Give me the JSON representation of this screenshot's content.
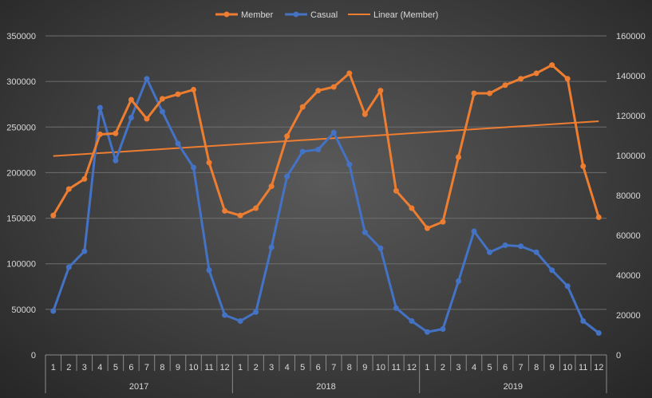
{
  "chart_data": {
    "type": "line",
    "title": "",
    "legend": {
      "position": "top",
      "entries": [
        "Member",
        "Casual",
        "Linear (Member)"
      ]
    },
    "x_months": [
      "1",
      "2",
      "3",
      "4",
      "5",
      "6",
      "7",
      "8",
      "9",
      "10",
      "11",
      "12",
      "1",
      "2",
      "3",
      "4",
      "5",
      "6",
      "7",
      "8",
      "9",
      "10",
      "11",
      "12",
      "1",
      "2",
      "3",
      "4",
      "5",
      "6",
      "7",
      "8",
      "9",
      "10",
      "11",
      "12"
    ],
    "x_years": [
      "2017",
      "2018",
      "2019"
    ],
    "y_left": {
      "min": 0,
      "max": 350000,
      "ticks": [
        "0",
        "50000",
        "100000",
        "150000",
        "200000",
        "250000",
        "300000",
        "350000"
      ]
    },
    "y_right": {
      "min": 0,
      "max": 160000,
      "ticks": [
        "0",
        "20000",
        "40000",
        "60000",
        "80000",
        "100000",
        "120000",
        "140000",
        "160000"
      ]
    },
    "grid": true,
    "series": [
      {
        "name": "Member",
        "axis": "left",
        "color": "#ed7d31",
        "values": [
          153000,
          182000,
          193000,
          242000,
          243000,
          280000,
          259000,
          281000,
          286000,
          291000,
          211000,
          158000,
          153000,
          161000,
          185000,
          240000,
          272000,
          290000,
          294000,
          309000,
          264000,
          290000,
          180000,
          161000,
          139000,
          146000,
          217000,
          287000,
          287000,
          296000,
          303000,
          309000,
          318000,
          303000,
          207000,
          151000
        ]
      },
      {
        "name": "Casual",
        "axis": "right",
        "color": "#4472c4",
        "values": [
          22000,
          44000,
          52000,
          124000,
          97500,
          119000,
          138500,
          122000,
          106000,
          94000,
          42500,
          20000,
          17000,
          21500,
          54000,
          89500,
          102000,
          103000,
          111500,
          95500,
          61500,
          53500,
          23500,
          17000,
          11500,
          13000,
          37000,
          62000,
          51500,
          55000,
          54500,
          51500,
          42500,
          34500,
          17000,
          11000
        ]
      },
      {
        "name": "Linear (Member)",
        "axis": "left",
        "color": "#ed7d31",
        "trend": "linear"
      }
    ]
  }
}
